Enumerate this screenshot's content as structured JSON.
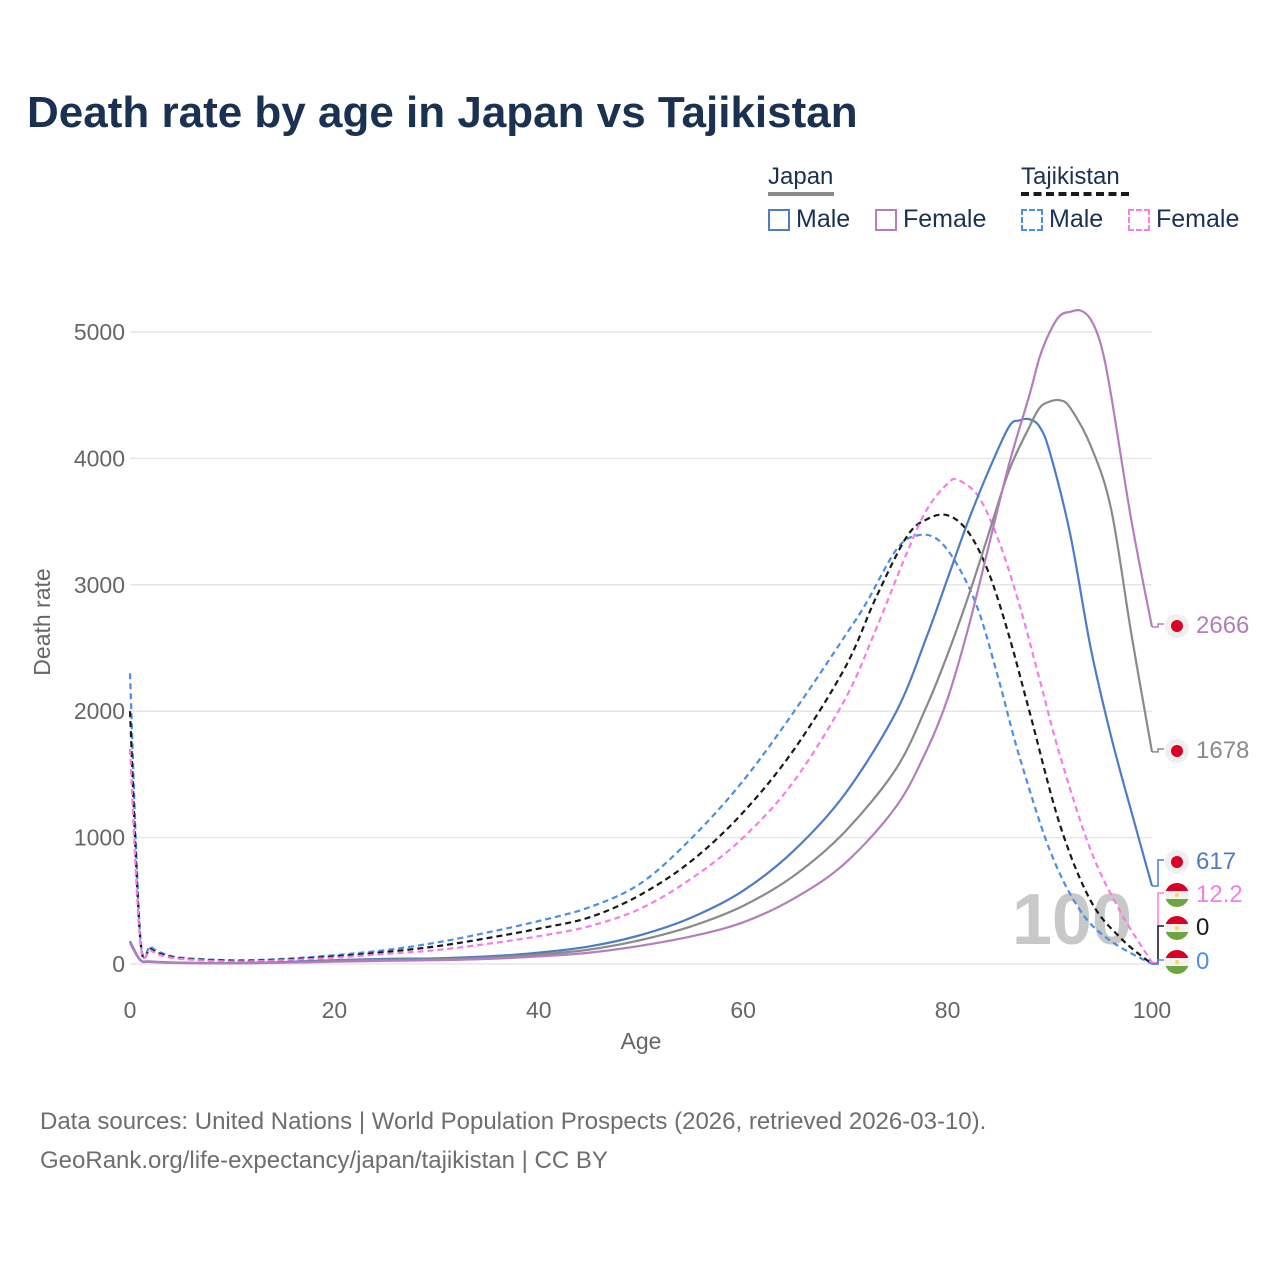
{
  "title": "Death rate by age in Japan vs Tajikistan",
  "legend": {
    "groups": [
      {
        "name": "Japan",
        "items": [
          "Male",
          "Female"
        ]
      },
      {
        "name": "Tajikistan",
        "items": [
          "Male",
          "Female"
        ]
      }
    ]
  },
  "sources": {
    "line1": "Data sources: United Nations | World Population Prospects (2026, retrieved 2026-03-10).",
    "line2": "GeoRank.org/life-expectancy/japan/tajikistan | CC BY"
  },
  "chart_data": {
    "type": "line",
    "title": "Death rate by age in Japan vs Tajikistan",
    "xlabel": "Age",
    "ylabel": "Death rate",
    "xlim": [
      0,
      100
    ],
    "ylim": [
      0,
      5300
    ],
    "xticks": [
      0,
      20,
      40,
      60,
      80,
      100
    ],
    "yticks": [
      0,
      1000,
      2000,
      3000,
      4000,
      5000
    ],
    "watermark": "100",
    "series": [
      {
        "name": "Tajikistan Male",
        "color": "#4a8fe7",
        "dash": true,
        "x": [
          0,
          1,
          2,
          3,
          5,
          10,
          15,
          20,
          25,
          30,
          35,
          40,
          45,
          50,
          55,
          60,
          65,
          70,
          72,
          75,
          77,
          79,
          81,
          83,
          85,
          87,
          90,
          93,
          96,
          100
        ],
        "y": [
          2300,
          230,
          140,
          90,
          50,
          30,
          40,
          70,
          110,
          170,
          250,
          340,
          450,
          640,
          1000,
          1450,
          2000,
          2600,
          2850,
          3280,
          3390,
          3360,
          3150,
          2800,
          2250,
          1650,
          900,
          420,
          180,
          0
        ],
        "end_label": "0",
        "flag": "tajikistan-flag"
      },
      {
        "name": "Tajikistan Both",
        "color": "#1a1a1a",
        "dash": true,
        "x": [
          0,
          1,
          2,
          3,
          5,
          10,
          15,
          20,
          25,
          30,
          35,
          40,
          45,
          50,
          55,
          60,
          65,
          70,
          73,
          76,
          78,
          80,
          82,
          84,
          86,
          88,
          91,
          94,
          97,
          100
        ],
        "y": [
          2000,
          200,
          120,
          80,
          45,
          25,
          35,
          60,
          95,
          140,
          205,
          280,
          370,
          550,
          820,
          1200,
          1700,
          2350,
          2900,
          3380,
          3520,
          3550,
          3420,
          3100,
          2600,
          2000,
          1100,
          500,
          200,
          0
        ],
        "end_label": "0",
        "flag": "tajikistan-flag"
      },
      {
        "name": "Tajikistan Female",
        "color": "#f57ee6",
        "dash": true,
        "x": [
          0,
          1,
          2,
          3,
          5,
          10,
          15,
          20,
          25,
          30,
          35,
          40,
          45,
          50,
          55,
          60,
          65,
          70,
          73,
          76,
          78,
          80,
          81,
          83,
          85,
          87,
          89,
          91,
          94,
          97,
          100
        ],
        "y": [
          1700,
          180,
          110,
          70,
          40,
          20,
          30,
          50,
          80,
          110,
          160,
          220,
          300,
          440,
          680,
          1000,
          1450,
          2100,
          2650,
          3250,
          3600,
          3800,
          3830,
          3700,
          3350,
          2850,
          2250,
          1650,
          900,
          400,
          12.2
        ],
        "end_label": "12.2",
        "flag": "tajikistan-flag"
      },
      {
        "name": "Japan Male",
        "color": "#4d7cc4",
        "dash": false,
        "x": [
          0,
          1,
          2,
          5,
          10,
          15,
          20,
          25,
          30,
          35,
          40,
          45,
          50,
          55,
          60,
          65,
          70,
          75,
          78,
          80,
          82,
          84,
          86,
          87,
          88,
          89,
          90,
          92,
          94,
          96,
          98,
          100
        ],
        "y": [
          180,
          35,
          20,
          10,
          8,
          15,
          30,
          40,
          45,
          60,
          90,
          140,
          230,
          370,
          580,
          900,
          1350,
          2000,
          2600,
          3050,
          3500,
          3900,
          4250,
          4300,
          4310,
          4250,
          4050,
          3400,
          2500,
          1800,
          1200,
          617
        ],
        "end_label": "617",
        "flag": "japan-flag"
      },
      {
        "name": "Japan Both",
        "color": "#8a8a8a",
        "dash": false,
        "x": [
          0,
          1,
          2,
          5,
          10,
          15,
          20,
          25,
          30,
          35,
          40,
          45,
          50,
          55,
          60,
          65,
          70,
          75,
          78,
          80,
          82,
          84,
          86,
          88,
          89,
          90,
          91,
          92,
          94,
          96,
          98,
          100
        ],
        "y": [
          175,
          32,
          18,
          9,
          7,
          12,
          25,
          33,
          38,
          50,
          75,
          115,
          190,
          300,
          460,
          700,
          1050,
          1550,
          2050,
          2450,
          2900,
          3400,
          3900,
          4250,
          4400,
          4450,
          4460,
          4400,
          4100,
          3600,
          2600,
          1678
        ],
        "end_label": "1678",
        "flag": "japan-flag"
      },
      {
        "name": "Japan Female",
        "color": "#b67cbf",
        "dash": false,
        "x": [
          0,
          1,
          2,
          5,
          10,
          15,
          20,
          25,
          30,
          35,
          40,
          45,
          50,
          55,
          60,
          65,
          70,
          75,
          78,
          80,
          82,
          84,
          86,
          88,
          89,
          90,
          91,
          92,
          93,
          94,
          95,
          96,
          98,
          100
        ],
        "y": [
          165,
          30,
          16,
          8,
          6,
          10,
          18,
          25,
          30,
          40,
          60,
          90,
          145,
          220,
          330,
          520,
          800,
          1250,
          1700,
          2100,
          2650,
          3300,
          3950,
          4500,
          4800,
          5000,
          5130,
          5160,
          5170,
          5100,
          4900,
          4500,
          3500,
          2666
        ],
        "end_label": "2666",
        "flag": "japan-flag"
      }
    ]
  }
}
